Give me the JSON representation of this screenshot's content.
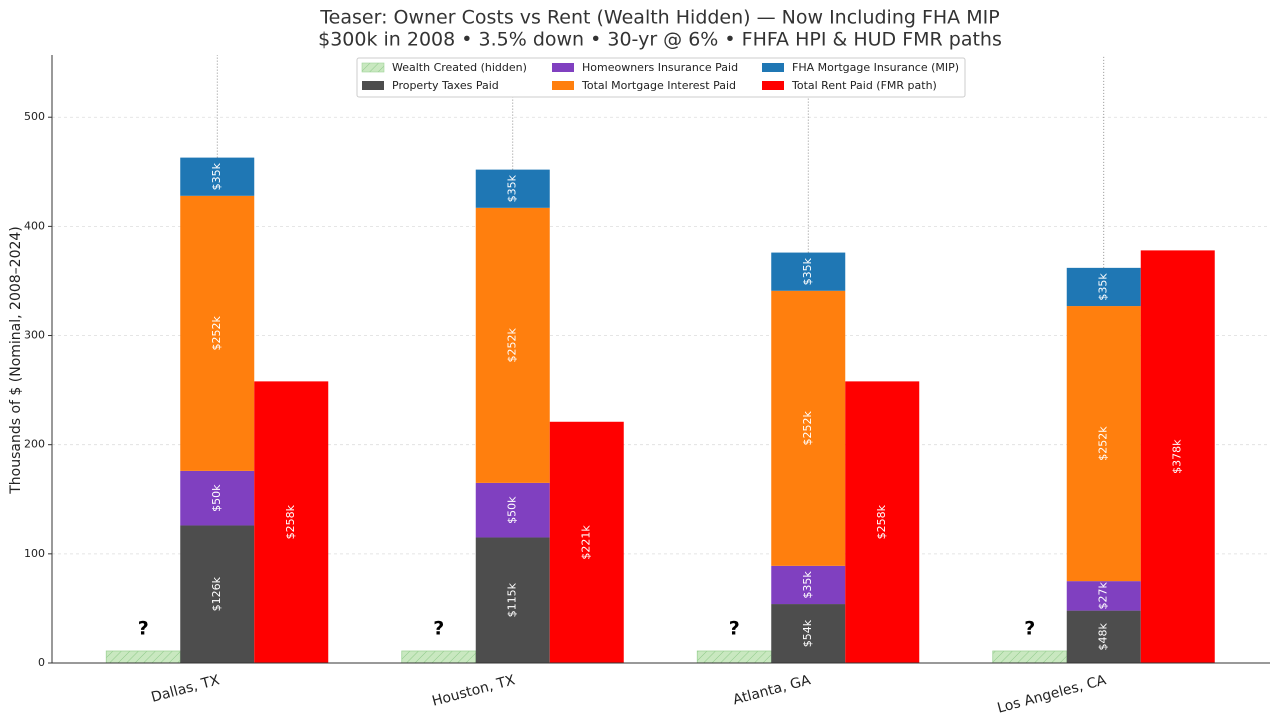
{
  "chart_data": {
    "type": "bar",
    "title": "Teaser: Owner Costs vs Rent (Wealth Hidden) — Now Including FHA MIP",
    "subtitle": "$300k in 2008 • 3.5% down • 30-yr @ 6% • FHFA HPI & HUD FMR paths",
    "y_label": "Thousands of $ (Nominal, 2008–2024)",
    "categories": [
      "Dallas, TX",
      "Houston, TX",
      "Atlanta, GA",
      "Los Angeles, CA"
    ],
    "annotations": [
      "?",
      "?",
      "?",
      "?"
    ],
    "series": [
      {
        "name": "Wealth Created (hidden)",
        "color": "#c9e8c0",
        "hatch": true,
        "values": [
          11,
          11,
          11,
          11
        ]
      },
      {
        "name": "Property Taxes Paid",
        "color": "#4d4d4d",
        "values": [
          126,
          115,
          54,
          48
        ],
        "value_labels": [
          "$126k",
          "$115k",
          "$54k",
          "$48k"
        ]
      },
      {
        "name": "Homeowners Insurance Paid",
        "color": "#8040c0",
        "values": [
          50,
          50,
          35,
          27
        ],
        "value_labels": [
          "$50k",
          "$50k",
          "$35k",
          "$27k"
        ]
      },
      {
        "name": "Total Mortgage Interest Paid",
        "color": "#ff7f0e",
        "values": [
          252,
          252,
          252,
          252
        ],
        "value_labels": [
          "$252k",
          "$252k",
          "$252k",
          "$252k"
        ]
      },
      {
        "name": "FHA Mortgage Insurance (MIP)",
        "color": "#1f77b4",
        "values": [
          35,
          35,
          35,
          35
        ],
        "value_labels": [
          "$35k",
          "$35k",
          "$35k",
          "$35k"
        ]
      },
      {
        "name": "Total Rent Paid (FMR path)",
        "color": "#ff0000",
        "values": [
          258,
          221,
          258,
          378
        ],
        "value_labels": [
          "$258k",
          "$221k",
          "$258k",
          "$378k"
        ]
      }
    ],
    "ylim": [
      0,
      557
    ],
    "yticks": [
      0,
      100,
      200,
      300,
      400,
      500
    ],
    "grid": true,
    "legend": "upper center"
  }
}
